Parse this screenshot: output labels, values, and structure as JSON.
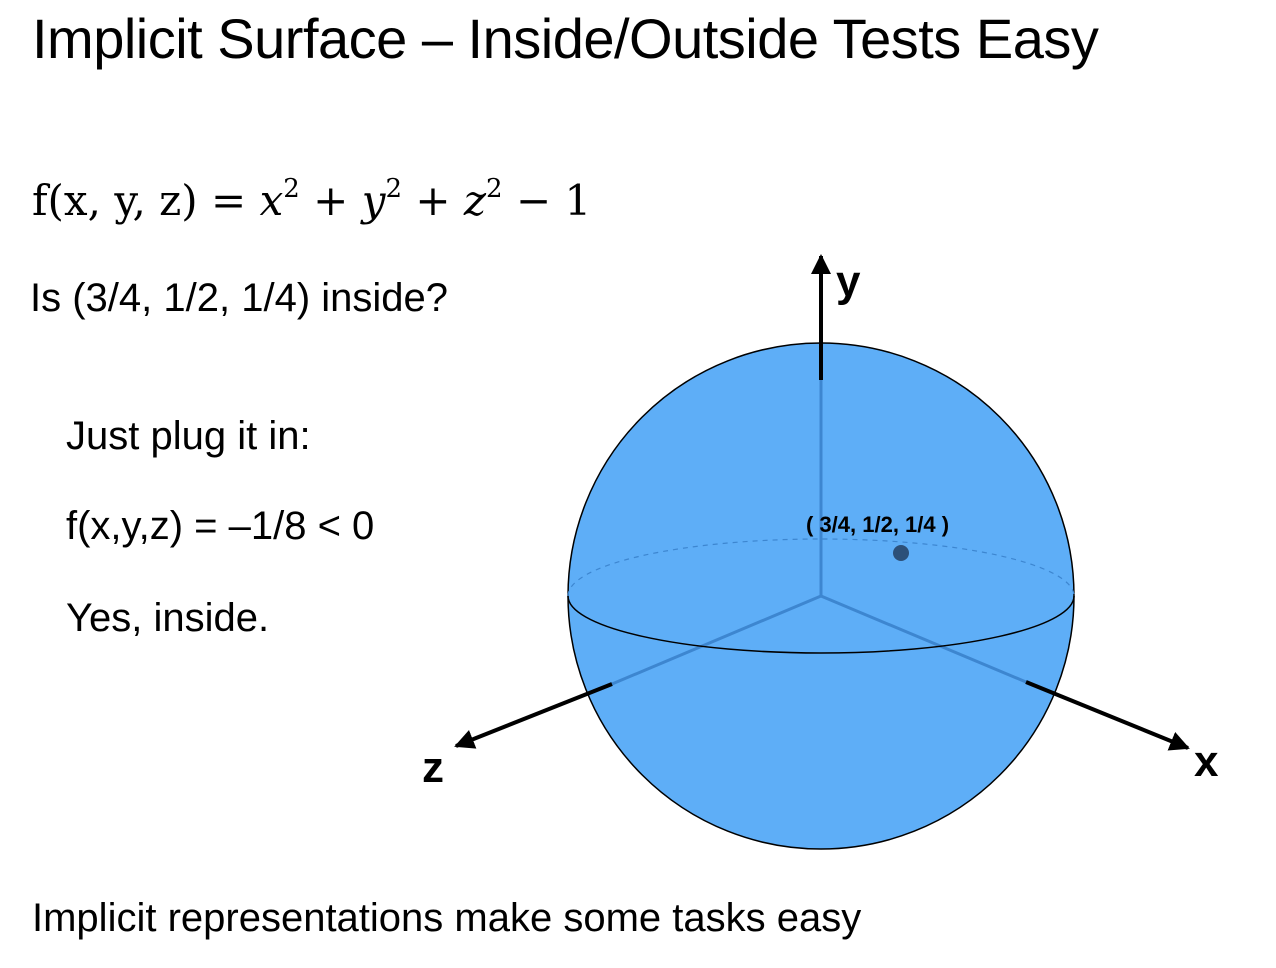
{
  "title": "Implicit Surface – Inside/Outside Tests Easy",
  "formula": {
    "lhs": "f(x, y, z) = ",
    "t1": "x",
    "p1": "2",
    "op1": " + ",
    "t2": "y",
    "p2": "2",
    "op2": " + ",
    "t3": "z",
    "p3": "2",
    "tail": " − 1"
  },
  "question": "Is (3/4, 1/2, 1/4) inside?",
  "steps": [
    "Just plug it in:",
    "f(x,y,z) = –1/8 < 0",
    "Yes, inside."
  ],
  "footer": "Implicit representations make some tasks easy",
  "diagram": {
    "axes": {
      "x": "x",
      "y": "y",
      "z": "z"
    },
    "point_label": "( 3/4, 1/2, 1/4 )",
    "colors": {
      "sphere_fill": "#5eaef7",
      "inner_axis": "#3d86d0",
      "point": "#2c5079",
      "outline": "#000000"
    }
  }
}
